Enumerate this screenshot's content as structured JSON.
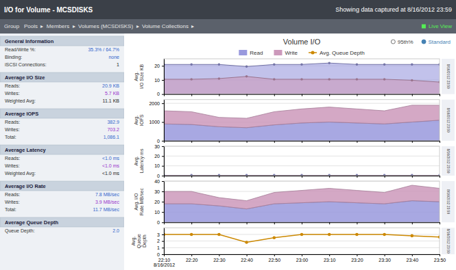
{
  "page": {
    "main_title": "I/O for Volume - MCSDISKS",
    "right_title": "Showing data captured at 8/16/2012 23:59",
    "nav_bar": "Group   Pools  ▸  Members  ▸  Volumes (MCSDISKS)  ▸  Volume Collections  ▸",
    "live_view": "Live View",
    "chart_title": "Volume I/O",
    "options": [
      {
        "label": "95th%",
        "selected": false
      },
      {
        "label": "Standard",
        "selected": true
      }
    ],
    "side_label": "8/16/2012 23:59",
    "panel_sections": [
      {
        "header": "General Information",
        "rows": [
          {
            "label": "Read/Write %:",
            "value": "35.3% / 64.7%",
            "color": "#3366cc"
          },
          {
            "label": "Binding:",
            "value": "none",
            "color": "#3366cc"
          },
          {
            "label": "iSCSI Connections:",
            "value": "1",
            "color": "#222222"
          }
        ]
      },
      {
        "header": "Average I/O Size",
        "rows": [
          {
            "label": "Reads:",
            "value": "20.9 KB",
            "color": "#3366cc"
          },
          {
            "label": "Writes:",
            "value": "5.7 KB",
            "color": "#9933cc"
          },
          {
            "label": "Weighted Avg:",
            "value": "11.1 KB",
            "color": "#222222"
          }
        ]
      },
      {
        "header": "Average IOPS",
        "rows": [
          {
            "label": "Reads:",
            "value": "382.9",
            "color": "#3366cc"
          },
          {
            "label": "Writes:",
            "value": "703.2",
            "color": "#9933cc"
          },
          {
            "label": "Total:",
            "value": "1,086.1",
            "color": "#3366cc"
          }
        ]
      },
      {
        "header": "Average Latency",
        "rows": [
          {
            "label": "Reads:",
            "value": "<1.0 ms",
            "color": "#3366cc"
          },
          {
            "label": "Writes:",
            "value": "<1.0 ms",
            "color": "#9933cc"
          },
          {
            "label": "Weighted Avg:",
            "value": "<1.0 ms",
            "color": "#222222"
          }
        ]
      },
      {
        "header": "Average I/O Rate",
        "rows": [
          {
            "label": "Reads:",
            "value": "7.8 MB/sec",
            "color": "#3366cc"
          },
          {
            "label": "Writes:",
            "value": "3.9 MB/sec",
            "color": "#9933cc"
          },
          {
            "label": "Total:",
            "value": "11.7 MB/sec",
            "color": "#3366cc"
          }
        ]
      },
      {
        "header": "Average Queue Depth",
        "rows": [
          {
            "label": "Queue Depth:",
            "value": "2.0",
            "color": "#3366cc"
          }
        ]
      }
    ]
  },
  "chart_data": [
    {
      "type": "area",
      "stacked": false,
      "categories": [
        "22:10\n8/16/2012",
        "22:20",
        "22:30",
        "22:40",
        "22:50",
        "23:00",
        "23:10",
        "23:20",
        "23:30",
        "23:40",
        "23:50"
      ],
      "series": [
        {
          "name": "Read",
          "color": "#9999dd",
          "marker": "circle",
          "values": [
            21.0,
            21.0,
            21.0,
            19.5,
            21.0,
            21.0,
            22.0,
            21.0,
            21.0,
            21.0,
            21.0
          ]
        },
        {
          "name": "Write",
          "color": "#cc99bb",
          "marker": "circle",
          "values": [
            10.5,
            10.5,
            11.0,
            12.5,
            10.5,
            10.5,
            10.5,
            10.5,
            10.5,
            9.8,
            8.5
          ]
        }
      ],
      "y_label": "Avg.\nI/O Size KB",
      "ylim": [
        0,
        25
      ],
      "yticks": [
        0,
        10,
        20
      ],
      "grid": true,
      "tick_labels": "y",
      "legend": "top"
    },
    {
      "type": "area",
      "stacked": true,
      "categories": [
        "22:10\n8/16/2012",
        "22:20",
        "22:30",
        "22:40",
        "22:50",
        "23:00",
        "23:10",
        "23:20",
        "23:30",
        "23:40",
        "23:50"
      ],
      "series": [
        {
          "color": "#9999dd",
          "values": [
            900,
            870,
            750,
            700,
            850,
            950,
            1000,
            950,
            900,
            1000,
            1100
          ]
        },
        {
          "color": "#cc99bb",
          "values": [
            700,
            680,
            500,
            500,
            700,
            750,
            800,
            750,
            700,
            900,
            800
          ]
        }
      ],
      "y_label": "Avg.\nIOPS",
      "ylim": [
        0,
        2200
      ],
      "yticks": [
        0,
        1000,
        2000
      ],
      "grid": true,
      "tick_labels": "y"
    },
    {
      "type": "area",
      "stacked": false,
      "categories": [
        "22:10\n8/16/2012",
        "22:20",
        "22:30",
        "22:40",
        "22:50",
        "23:00",
        "23:10",
        "23:20",
        "23:30",
        "23:40",
        "23:50"
      ],
      "series": [
        {
          "color": "#9999dd",
          "marker": "circle",
          "values": [
            0.4,
            0.4,
            0.4,
            0.4,
            0.4,
            0.4,
            0.4,
            0.4,
            0.4,
            0.4,
            0.4
          ]
        },
        {
          "color": "#cc99bb",
          "values": [
            0.3,
            0.3,
            0.3,
            0.3,
            0.3,
            0.3,
            0.3,
            0.3,
            0.3,
            0.3,
            0.3
          ]
        }
      ],
      "y_label": "Avg.\nLatency ms",
      "ylim": [
        0,
        30
      ],
      "yticks": [
        0,
        10,
        20,
        30
      ],
      "grid": true,
      "tick_labels": "y"
    },
    {
      "type": "area",
      "stacked": true,
      "categories": [
        "22:10\n8/16/2012",
        "22:20",
        "22:30",
        "22:40",
        "22:50",
        "23:00",
        "23:10",
        "23:20",
        "23:30",
        "23:40",
        "23:50"
      ],
      "series": [
        {
          "color": "#9999dd",
          "values": [
            18,
            18,
            16,
            13,
            18,
            19,
            20,
            19,
            18,
            21,
            20
          ]
        },
        {
          "color": "#cc99bb",
          "values": [
            12,
            12,
            8,
            8,
            11,
            12,
            13,
            12,
            11,
            15,
            13
          ]
        }
      ],
      "y_label": "Avg. I/O\nRate MB/sec",
      "ylim": [
        0,
        40
      ],
      "yticks": [
        0,
        10,
        20,
        30,
        40
      ],
      "grid": true,
      "tick_labels": "y"
    },
    {
      "type": "line",
      "categories": [
        "22:10\n8/16/2012",
        "22:20",
        "22:30",
        "22:40",
        "22:50",
        "23:00",
        "23:10",
        "23:20",
        "23:30",
        "23:40",
        "23:50"
      ],
      "series": [
        {
          "name": "Avg. Queue Depth",
          "color": "#cc8800",
          "marker": "circle",
          "values": [
            3.0,
            3.0,
            3.0,
            1.8,
            2.5,
            3.0,
            3.0,
            3.0,
            3.0,
            2.8,
            2.6
          ]
        }
      ],
      "y_label": "Avg.\nQueue\nDepth",
      "ylim": [
        0,
        4
      ],
      "yticks": [
        0,
        1,
        2,
        3
      ],
      "grid": true,
      "legend": "top"
    }
  ]
}
